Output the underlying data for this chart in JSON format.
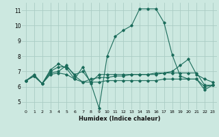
{
  "title": "",
  "xlabel": "Humidex (Indice chaleur)",
  "ylabel": "",
  "bg_color": "#cce8e0",
  "grid_color": "#aaccc4",
  "line_color": "#1a6b5a",
  "x_ticks": [
    0,
    1,
    2,
    3,
    4,
    5,
    6,
    7,
    8,
    9,
    10,
    11,
    12,
    13,
    14,
    15,
    16,
    17,
    18,
    19,
    20,
    21,
    22,
    23
  ],
  "ylim": [
    4.5,
    11.5
  ],
  "xlim": [
    -0.5,
    23.5
  ],
  "yticks": [
    5,
    6,
    7,
    8,
    9,
    10,
    11
  ],
  "line1_x": [
    0,
    1,
    2,
    3,
    4,
    5,
    6,
    7,
    8,
    9,
    10,
    11,
    12,
    13,
    14,
    15,
    16,
    17,
    18,
    19,
    20,
    21,
    22,
    23
  ],
  "line1_y": [
    6.4,
    6.7,
    6.2,
    7.1,
    7.5,
    7.2,
    6.5,
    7.3,
    6.2,
    4.6,
    8.0,
    9.3,
    9.7,
    10.0,
    11.1,
    11.1,
    11.1,
    10.2,
    8.1,
    6.7,
    6.5,
    6.5,
    5.8,
    6.1
  ],
  "line2_x": [
    0,
    1,
    2,
    3,
    4,
    5,
    6,
    7,
    8,
    9,
    10,
    11,
    12,
    13,
    14,
    15,
    16,
    17,
    18,
    19,
    20,
    21,
    22,
    23
  ],
  "line2_y": [
    6.4,
    6.8,
    6.2,
    6.9,
    7.0,
    7.4,
    6.7,
    6.3,
    6.5,
    6.6,
    6.6,
    6.7,
    6.7,
    6.8,
    6.8,
    6.8,
    6.9,
    6.9,
    7.0,
    7.4,
    7.8,
    6.8,
    6.5,
    6.3
  ],
  "line3_x": [
    0,
    1,
    2,
    3,
    4,
    5,
    6,
    7,
    8,
    9,
    10,
    11,
    12,
    13,
    14,
    15,
    16,
    17,
    18,
    19,
    20,
    21,
    22,
    23
  ],
  "line3_y": [
    6.4,
    6.7,
    6.2,
    6.8,
    6.9,
    6.8,
    6.5,
    6.3,
    6.3,
    6.3,
    6.4,
    6.4,
    6.4,
    6.4,
    6.4,
    6.4,
    6.4,
    6.5,
    6.5,
    6.5,
    6.5,
    6.5,
    6.0,
    6.1
  ],
  "line4_x": [
    0,
    1,
    2,
    3,
    4,
    5,
    6,
    7,
    8,
    9,
    10,
    11,
    12,
    13,
    14,
    15,
    16,
    17,
    18,
    19,
    20,
    21,
    22,
    23
  ],
  "line4_y": [
    6.4,
    6.7,
    6.2,
    7.0,
    7.3,
    7.3,
    6.8,
    7.0,
    6.3,
    6.8,
    6.8,
    6.8,
    6.8,
    6.8,
    6.8,
    6.8,
    6.8,
    6.9,
    6.9,
    6.9,
    6.9,
    6.9,
    6.1,
    6.1
  ]
}
